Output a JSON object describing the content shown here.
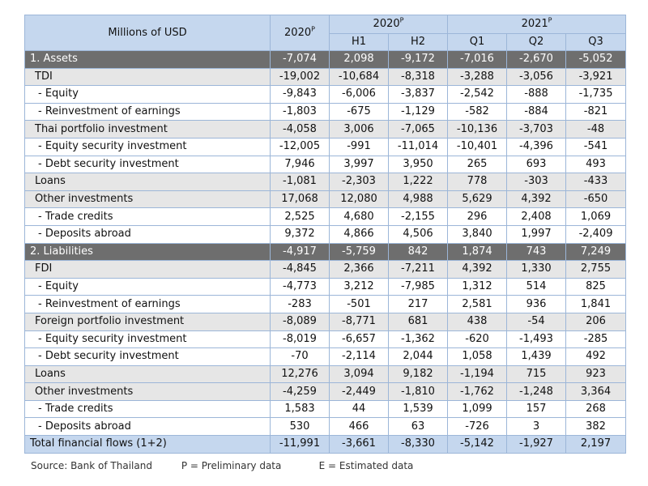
{
  "header": {
    "unit_label": "Millions of USD",
    "col_annual": "2020",
    "col_annual_sup": "P",
    "group_2020": "2020",
    "group_2020_sup": "P",
    "group_2021": "2021",
    "group_2021_sup": "P",
    "sub": [
      "H1",
      "H2",
      "Q1",
      "Q2",
      "Q3"
    ]
  },
  "rows": [
    {
      "label": "1. Assets",
      "style": "section",
      "values": [
        "-7,074",
        "2,098",
        "-9,172",
        "-7,016",
        "-2,670",
        "-5,052"
      ]
    },
    {
      "label": "TDI",
      "style": "shade",
      "values": [
        "-19,002",
        "-10,684",
        "-8,318",
        "-3,288",
        "-3,056",
        "-3,921"
      ]
    },
    {
      "label": "- Equity",
      "style": "plain",
      "values": [
        "-9,843",
        "-6,006",
        "-3,837",
        "-2,542",
        "-888",
        "-1,735"
      ]
    },
    {
      "label": "- Reinvestment of earnings",
      "style": "plain",
      "values": [
        "-1,803",
        "-675",
        "-1,129",
        "-582",
        "-884",
        "-821"
      ]
    },
    {
      "label": "Thai portfolio investment",
      "style": "shade",
      "values": [
        "-4,058",
        "3,006",
        "-7,065",
        "-10,136",
        "-3,703",
        "-48"
      ]
    },
    {
      "label": "- Equity security investment",
      "style": "plain",
      "values": [
        "-12,005",
        "-991",
        "-11,014",
        "-10,401",
        "-4,396",
        "-541"
      ]
    },
    {
      "label": "- Debt security investment",
      "style": "plain",
      "values": [
        "7,946",
        "3,997",
        "3,950",
        "265",
        "693",
        "493"
      ]
    },
    {
      "label": "Loans",
      "style": "shade",
      "values": [
        "-1,081",
        "-2,303",
        "1,222",
        "778",
        "-303",
        "-433"
      ]
    },
    {
      "label": "Other investments",
      "style": "shade",
      "values": [
        "17,068",
        "12,080",
        "4,988",
        "5,629",
        "4,392",
        "-650"
      ]
    },
    {
      "label": "- Trade credits",
      "style": "plain",
      "values": [
        "2,525",
        "4,680",
        "-2,155",
        "296",
        "2,408",
        "1,069"
      ]
    },
    {
      "label": "- Deposits abroad",
      "style": "plain",
      "values": [
        "9,372",
        "4,866",
        "4,506",
        "3,840",
        "1,997",
        "-2,409"
      ]
    },
    {
      "label": "2. Liabilities",
      "style": "section",
      "values": [
        "-4,917",
        "-5,759",
        "842",
        "1,874",
        "743",
        "7,249"
      ]
    },
    {
      "label": "FDI",
      "style": "shade",
      "values": [
        "-4,845",
        "2,366",
        "-7,211",
        "4,392",
        "1,330",
        "2,755"
      ]
    },
    {
      "label": "- Equity",
      "style": "plain",
      "values": [
        "-4,773",
        "3,212",
        "-7,985",
        "1,312",
        "514",
        "825"
      ]
    },
    {
      "label": "- Reinvestment of earnings",
      "style": "plain",
      "values": [
        "-283",
        "-501",
        "217",
        "2,581",
        "936",
        "1,841"
      ]
    },
    {
      "label": "Foreign portfolio investment",
      "style": "shade",
      "values": [
        "-8,089",
        "-8,771",
        "681",
        "438",
        "-54",
        "206"
      ]
    },
    {
      "label": "- Equity security investment",
      "style": "plain",
      "values": [
        "-8,019",
        "-6,657",
        "-1,362",
        "-620",
        "-1,493",
        "-285"
      ]
    },
    {
      "label": "- Debt security investment",
      "style": "plain",
      "values": [
        "-70",
        "-2,114",
        "2,044",
        "1,058",
        "1,439",
        "492"
      ]
    },
    {
      "label": "Loans",
      "style": "shade",
      "values": [
        "12,276",
        "3,094",
        "9,182",
        "-1,194",
        "715",
        "923"
      ]
    },
    {
      "label": "Other investments",
      "style": "shade",
      "values": [
        "-4,259",
        "-2,449",
        "-1,810",
        "-1,762",
        "-1,248",
        "3,364"
      ]
    },
    {
      "label": "- Trade credits",
      "style": "plain",
      "values": [
        "1,583",
        "44",
        "1,539",
        "1,099",
        "157",
        "268"
      ]
    },
    {
      "label": "- Deposits abroad",
      "style": "plain",
      "values": [
        "530",
        "466",
        "63",
        "-726",
        "3",
        "382"
      ]
    },
    {
      "label": "Total financial flows (1+2)",
      "style": "total",
      "values": [
        "-11,991",
        "-3,661",
        "-8,330",
        "-5,142",
        "-1,927",
        "2,197"
      ]
    }
  ],
  "footer": {
    "source": "Source: Bank of Thailand",
    "p_note": "P = Preliminary data",
    "e_note": "E = Estimated data"
  }
}
